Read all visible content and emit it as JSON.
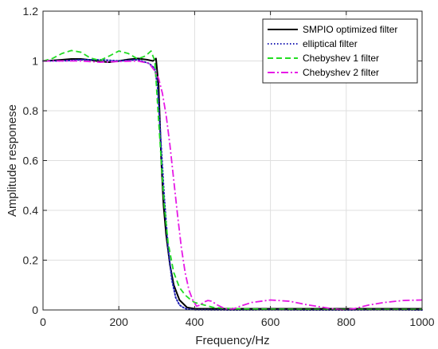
{
  "chart_data": {
    "type": "line",
    "title": "",
    "xlabel": "Frequency/Hz",
    "ylabel": "Amplitude responese",
    "xlim": [
      0,
      1000
    ],
    "ylim": [
      0,
      1.2
    ],
    "xticks": [
      0,
      200,
      400,
      600,
      800,
      1000
    ],
    "yticks": [
      0,
      0.2,
      0.4,
      0.6,
      0.8,
      1,
      1.2
    ],
    "xtick_labels": [
      "0",
      "200",
      "400",
      "600",
      "800",
      "1000"
    ],
    "ytick_labels": [
      "0",
      "0.2",
      "0.4",
      "0.6",
      "0.8",
      "1",
      "1.2"
    ],
    "grid": true,
    "legend_position": "top-right",
    "series": [
      {
        "name": "SMPIO optimized filter",
        "color": "#000000",
        "style": "solid",
        "x": [
          0,
          25,
          50,
          75,
          100,
          125,
          150,
          175,
          200,
          225,
          250,
          275,
          290,
          298,
          305,
          312,
          318,
          325,
          335,
          345,
          360,
          380,
          400,
          450,
          500,
          600,
          700,
          800,
          900,
          1000
        ],
        "y": [
          1.0,
          1.002,
          1.005,
          1.008,
          1.008,
          1.004,
          0.998,
          0.995,
          1.0,
          1.006,
          1.01,
          1.005,
          1.0,
          1.01,
          0.9,
          0.6,
          0.42,
          0.3,
          0.18,
          0.1,
          0.04,
          0.01,
          0.005,
          0.005,
          0.005,
          0.005,
          0.005,
          0.005,
          0.005,
          0.005
        ]
      },
      {
        "name": "elliptical filter",
        "color": "#1f1fb4",
        "style": "dotted",
        "x": [
          0,
          50,
          100,
          150,
          200,
          250,
          280,
          295,
          302,
          310,
          320,
          330,
          340,
          350,
          360,
          370,
          380,
          400,
          500,
          600,
          700,
          800,
          900,
          1000
        ],
        "y": [
          1.0,
          1.0,
          1.005,
          1.005,
          1.0,
          1.005,
          0.99,
          0.97,
          0.9,
          0.7,
          0.45,
          0.25,
          0.12,
          0.05,
          0.02,
          0.01,
          0.003,
          0.001,
          0.0,
          0.001,
          0.0,
          0.0,
          0.001,
          0.0
        ]
      },
      {
        "name": "Chebyshev 1 filter",
        "color": "#22dd22",
        "style": "dashed",
        "x": [
          0,
          25,
          50,
          75,
          100,
          125,
          150,
          175,
          200,
          225,
          250,
          270,
          285,
          295,
          300,
          305,
          312,
          320,
          330,
          345,
          360,
          375,
          390,
          400,
          450,
          500,
          600,
          700,
          800,
          900,
          1000
        ],
        "y": [
          1.0,
          1.01,
          1.03,
          1.042,
          1.035,
          1.012,
          1.002,
          1.02,
          1.04,
          1.03,
          1.008,
          1.02,
          1.04,
          1.0,
          0.88,
          0.76,
          0.6,
          0.42,
          0.27,
          0.15,
          0.09,
          0.06,
          0.04,
          0.03,
          0.01,
          0.005,
          0.003,
          0.002,
          0.002,
          0.002,
          0.002
        ]
      },
      {
        "name": "Chebyshev 2 filter",
        "color": "#e619e6",
        "style": "dashdot",
        "x": [
          0,
          50,
          100,
          150,
          200,
          250,
          280,
          295,
          305,
          315,
          325,
          335,
          345,
          355,
          365,
          375,
          385,
          395,
          405,
          415,
          425,
          435,
          445,
          460,
          480,
          500,
          520,
          550,
          600,
          650,
          700,
          750,
          790,
          820,
          860,
          900,
          950,
          1000
        ],
        "y": [
          1.0,
          1.0,
          1.0,
          0.995,
          0.998,
          1.0,
          0.99,
          0.96,
          0.93,
          0.87,
          0.78,
          0.66,
          0.52,
          0.38,
          0.25,
          0.15,
          0.08,
          0.04,
          0.015,
          0.02,
          0.032,
          0.038,
          0.035,
          0.02,
          0.005,
          0.003,
          0.015,
          0.03,
          0.04,
          0.035,
          0.02,
          0.008,
          0.0,
          0.005,
          0.02,
          0.03,
          0.038,
          0.04
        ]
      }
    ]
  }
}
